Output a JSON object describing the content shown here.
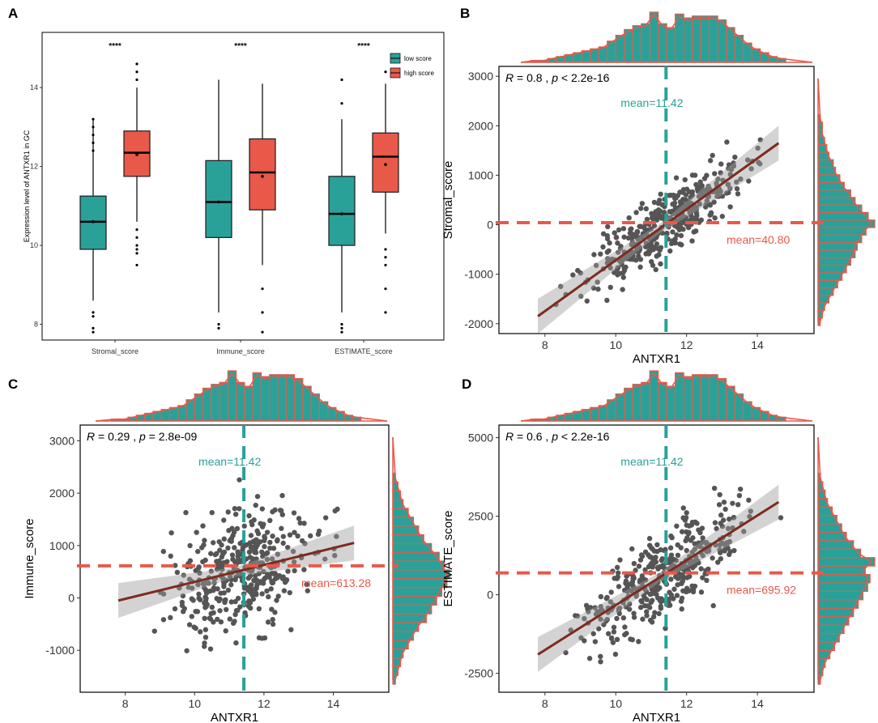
{
  "colors": {
    "teal": "#2aa198",
    "red": "#e8594a",
    "line": "#7f2a1e",
    "point": "#555555"
  },
  "chart_data": [
    {
      "panel": "A",
      "type": "box",
      "ylabel": "Expression level of ANTXR1 in GC",
      "ylim": [
        7.6,
        15.4
      ],
      "yticks": [
        8,
        10,
        12,
        14
      ],
      "categories": [
        "Stromal_score",
        "Immune_score",
        "ESTIMATE_score"
      ],
      "significance": [
        "****",
        "****",
        "****"
      ],
      "legend": [
        "low score",
        "high score"
      ],
      "series": [
        {
          "name": "low score",
          "boxes": [
            {
              "whisker_low": 8.6,
              "q1": 9.9,
              "median": 10.6,
              "q3": 11.25,
              "whisker_high": 13.2,
              "mean": 10.6,
              "outliers": [
                7.8,
                7.9,
                8.2,
                8.3,
                12.4,
                12.6,
                12.8,
                13.0,
                13.2
              ]
            },
            {
              "whisker_low": 8.3,
              "q1": 10.2,
              "median": 11.1,
              "q3": 12.15,
              "whisker_high": 14.2,
              "mean": 11.1,
              "outliers": [
                7.9,
                8.0
              ]
            },
            {
              "whisker_low": 8.3,
              "q1": 10.0,
              "median": 10.8,
              "q3": 11.75,
              "whisker_high": 13.2,
              "mean": 10.8,
              "outliers": [
                7.8,
                7.9,
                8.0,
                13.6,
                14.2
              ]
            }
          ]
        },
        {
          "name": "high score",
          "boxes": [
            {
              "whisker_low": 10.6,
              "q1": 11.75,
              "median": 12.35,
              "q3": 12.9,
              "whisker_high": 14.0,
              "mean": 12.3,
              "outliers": [
                9.5,
                9.8,
                9.9,
                10.0,
                10.2,
                10.4,
                14.2,
                14.4,
                14.6
              ]
            },
            {
              "whisker_low": 9.5,
              "q1": 10.9,
              "median": 11.85,
              "q3": 12.7,
              "whisker_high": 14.1,
              "mean": 11.75,
              "outliers": [
                8.3,
                7.8,
                8.9
              ]
            },
            {
              "whisker_low": 10.3,
              "q1": 11.35,
              "median": 12.25,
              "q3": 12.85,
              "whisker_high": 14.1,
              "mean": 12.05,
              "outliers": [
                8.3,
                8.9,
                9.5,
                9.7,
                9.9,
                14.4
              ]
            }
          ]
        }
      ]
    },
    {
      "panel": "B",
      "type": "scatter",
      "xlabel": "ANTXR1",
      "ylabel": "Stromal_score",
      "xlim": [
        6.7,
        15.6
      ],
      "ylim": [
        -2200,
        3200
      ],
      "xticks": [
        8,
        10,
        12,
        14
      ],
      "yticks": [
        -2000,
        -1000,
        0,
        1000,
        2000,
        3000
      ],
      "stat_r": "R = 0.8",
      "stat_p": "p < 2.2e-16",
      "mean_x": 11.42,
      "mean_x_label": "mean=11.42",
      "mean_y": 40.8,
      "mean_y_label": "mean=40.80",
      "fit": {
        "x": [
          7.8,
          14.6
        ],
        "y": [
          -1850,
          1650
        ]
      },
      "n_points": 400,
      "seed": 11,
      "noise": 420,
      "hist_x": [
        1,
        1,
        2,
        3,
        4,
        5,
        6,
        7,
        8,
        11,
        14,
        17,
        19,
        20,
        26,
        20,
        18,
        25,
        23,
        24,
        24,
        24,
        22,
        18,
        14,
        10,
        7,
        5,
        3,
        2
      ],
      "hist_y": [
        1,
        2,
        3,
        5,
        7,
        9,
        11,
        13,
        15,
        17,
        18,
        20,
        22,
        26,
        23,
        20,
        17,
        15,
        12,
        10,
        8,
        7,
        5,
        4,
        3,
        2,
        2,
        1
      ]
    },
    {
      "panel": "C",
      "type": "scatter",
      "xlabel": "ANTXR1",
      "ylabel": "Immune_score",
      "xlim": [
        6.7,
        15.6
      ],
      "ylim": [
        -1800,
        3300
      ],
      "xticks": [
        8,
        10,
        12,
        14
      ],
      "yticks": [
        -1000,
        0,
        1000,
        2000,
        3000
      ],
      "stat_r": "R = 0.29",
      "stat_p": "p = 2.8e-09",
      "mean_x": 11.42,
      "mean_x_label": "mean=11.42",
      "mean_y": 613.28,
      "mean_y_label": "mean=613.28",
      "fit": {
        "x": [
          7.8,
          14.6
        ],
        "y": [
          -50,
          1050
        ]
      },
      "n_points": 400,
      "seed": 23,
      "noise": 820,
      "hist_x": [
        1,
        1,
        2,
        3,
        4,
        5,
        6,
        7,
        8,
        11,
        14,
        17,
        19,
        20,
        26,
        20,
        18,
        25,
        23,
        24,
        24,
        24,
        22,
        18,
        14,
        10,
        7,
        5,
        3,
        2
      ],
      "hist_y": [
        1,
        2,
        3,
        4,
        6,
        8,
        10,
        13,
        15,
        17,
        19,
        21,
        22,
        20,
        18,
        15,
        12,
        10,
        8,
        6,
        4,
        3,
        2,
        1
      ]
    },
    {
      "panel": "D",
      "type": "scatter",
      "xlabel": "ANTXR1",
      "ylabel": "ESTIMATE_score",
      "xlim": [
        6.7,
        15.6
      ],
      "ylim": [
        -3100,
        5400
      ],
      "xticks": [
        8,
        10,
        12,
        14
      ],
      "yticks": [
        -2500,
        0,
        2500,
        5000
      ],
      "stat_r": "R = 0.6",
      "stat_p": "p < 2.2e-16",
      "mean_x": 11.42,
      "mean_x_label": "mean=11.42",
      "mean_y": 695.92,
      "mean_y_label": "mean=695.92",
      "fit": {
        "x": [
          7.8,
          14.6
        ],
        "y": [
          -1900,
          2950
        ]
      },
      "n_points": 400,
      "seed": 37,
      "noise": 1050,
      "hist_x": [
        1,
        1,
        2,
        3,
        4,
        5,
        6,
        7,
        8,
        11,
        14,
        17,
        19,
        20,
        26,
        20,
        18,
        25,
        23,
        24,
        24,
        24,
        22,
        18,
        14,
        10,
        7,
        5,
        3,
        2
      ],
      "hist_y": [
        1,
        2,
        3,
        5,
        7,
        9,
        11,
        13,
        15,
        17,
        19,
        21,
        22,
        20,
        24,
        18,
        15,
        12,
        10,
        8,
        6,
        4,
        3,
        2,
        1
      ]
    }
  ]
}
